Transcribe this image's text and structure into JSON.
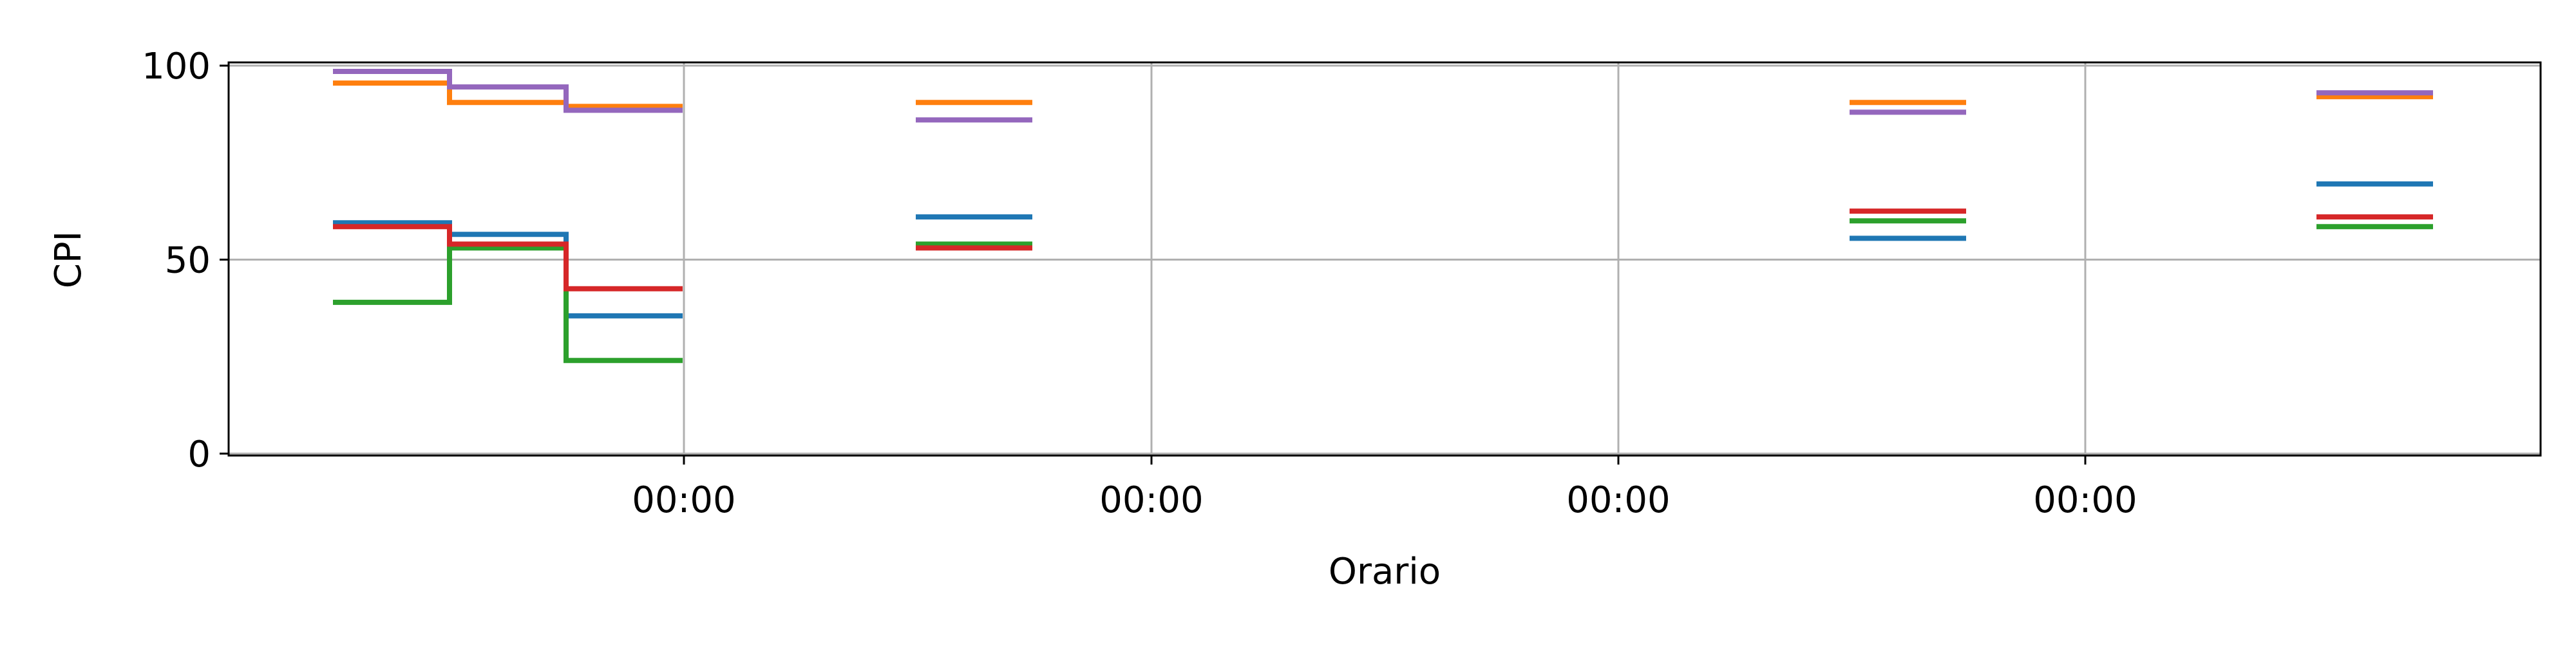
{
  "chart_data": {
    "type": "line",
    "title": "",
    "xlabel": "Orario",
    "ylabel": "CPI",
    "ylim": [
      0,
      100
    ],
    "yticks": [
      0,
      50,
      100
    ],
    "x_tick_labels": [
      "00:00",
      "00:00",
      "00:00",
      "00:00"
    ],
    "grid": true,
    "legend": "none",
    "series": [
      {
        "color": "#1f77b4",
        "segments": [
          {
            "values": [
              59.5,
              56.5,
              35.5
            ]
          },
          {
            "values": [
              61
            ]
          },
          {
            "values": [
              55.5
            ]
          },
          {
            "values": [
              69.5
            ]
          }
        ]
      },
      {
        "color": "#ff7f0e",
        "segments": [
          {
            "values": [
              95.5,
              90.5,
              89.5
            ]
          },
          {
            "values": [
              90.5
            ]
          },
          {
            "values": [
              90.5
            ]
          },
          {
            "values": [
              92
            ]
          }
        ]
      },
      {
        "color": "#2ca02c",
        "segments": [
          {
            "values": [
              39,
              53,
              24
            ]
          },
          {
            "values": [
              54
            ]
          },
          {
            "values": [
              60
            ]
          },
          {
            "values": [
              58.5
            ]
          }
        ]
      },
      {
        "color": "#d62728",
        "segments": [
          {
            "values": [
              58.5,
              54,
              42.5
            ]
          },
          {
            "values": [
              53
            ]
          },
          {
            "values": [
              62.5
            ]
          },
          {
            "values": [
              61
            ]
          }
        ]
      },
      {
        "color": "#9467bd",
        "segments": [
          {
            "values": [
              98.5,
              94.5,
              88.5
            ]
          },
          {
            "values": [
              86
            ]
          },
          {
            "values": [
              88
            ]
          },
          {
            "values": [
              93
            ]
          }
        ]
      }
    ]
  }
}
